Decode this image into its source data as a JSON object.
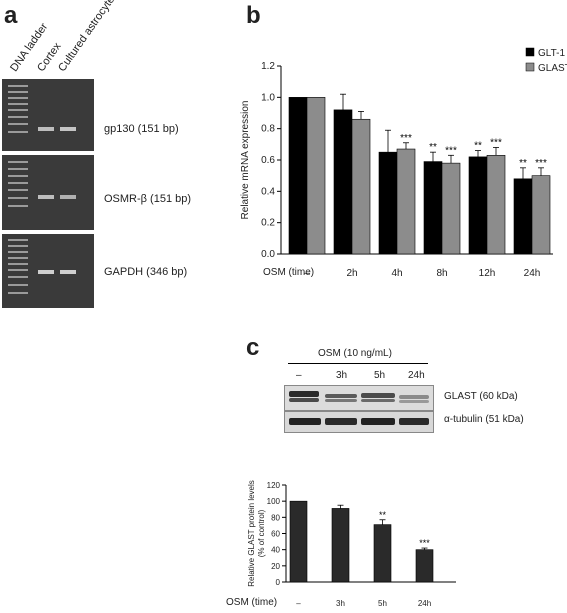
{
  "panel_a": {
    "letter": "a",
    "lane_headers": [
      "DNA ladder",
      "Cortex",
      "Cultured astrocytes"
    ],
    "gels": [
      {
        "label": "gp130 (151 bp)"
      },
      {
        "label": "OSMR-β (151 bp)"
      },
      {
        "label": "GAPDH (346 bp)"
      }
    ]
  },
  "panel_b": {
    "letter": "b",
    "xlabel_prefix": "OSM (time)",
    "ylabel": "Relative mRNA expression"
  },
  "panel_c": {
    "letter": "c",
    "blot_title": "OSM (10 ng/mL)",
    "blot_lanes": [
      "–",
      "3h",
      "5h",
      "24h"
    ],
    "blot_rows": [
      "GLAST (60 kDa)",
      "α-tubulin (51 kDa)"
    ],
    "xlabel_prefix": "OSM (time)",
    "ylabel_line1": "Relative GLAST protein levels",
    "ylabel_line2": "(% of control)"
  },
  "chart_data": [
    {
      "type": "bar",
      "categories": [
        "–",
        "2h",
        "4h",
        "8h",
        "12h",
        "24h"
      ],
      "series": [
        {
          "name": "GLT-1",
          "color": "#000000",
          "values": [
            1.0,
            0.92,
            0.65,
            0.59,
            0.62,
            0.48
          ],
          "errors": [
            0.0,
            0.1,
            0.14,
            0.06,
            0.04,
            0.07
          ],
          "significance": [
            "",
            "",
            "",
            "**",
            "**",
            "**"
          ]
        },
        {
          "name": "GLAST",
          "color": "#8c8c8c",
          "values": [
            1.0,
            0.86,
            0.67,
            0.58,
            0.63,
            0.5
          ],
          "errors": [
            0.0,
            0.05,
            0.04,
            0.05,
            0.05,
            0.05
          ],
          "significance": [
            "",
            "",
            "***",
            "***",
            "***",
            "***"
          ]
        }
      ],
      "ylim": [
        0,
        1.2
      ],
      "yticks": [
        "0.0",
        "0.2",
        "0.4",
        "0.6",
        "0.8",
        "1.0",
        "1.2"
      ],
      "legend": "top-right"
    },
    {
      "type": "bar",
      "categories": [
        "–",
        "3h",
        "5h",
        "24h"
      ],
      "series": [
        {
          "color": "#2a2a2a",
          "values": [
            100,
            91,
            71,
            40
          ],
          "errors": [
            0,
            4,
            6,
            2
          ],
          "significance": [
            "",
            "",
            "**",
            "***"
          ]
        }
      ],
      "ylim": [
        0,
        120
      ],
      "yticks": [
        "0",
        "20",
        "40",
        "60",
        "80",
        "100",
        "120"
      ]
    }
  ]
}
